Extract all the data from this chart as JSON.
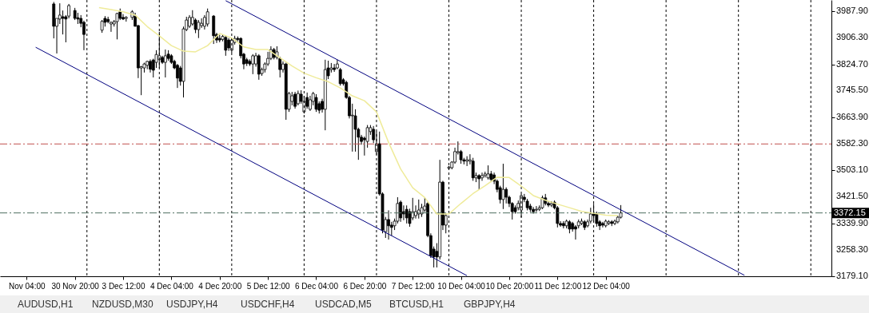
{
  "chart_data": {
    "type": "candlestick",
    "categories": [
      "Nov 04:00",
      null,
      null,
      null,
      null,
      null,
      null,
      null,
      null,
      null,
      null,
      null,
      null,
      null,
      null,
      null,
      "30 Nov 20:00",
      null,
      null,
      null,
      null,
      null,
      null,
      null,
      null,
      null,
      null,
      null,
      null,
      null,
      null,
      null,
      "3 Dec 12:00",
      null,
      null,
      null,
      null,
      null,
      null,
      null,
      null,
      null,
      null,
      null,
      null,
      null,
      null,
      null,
      "4 Dec 04:00",
      null,
      null,
      null,
      null,
      null,
      null,
      null,
      null,
      null,
      null,
      null,
      null,
      null,
      null,
      null,
      "4 Dec 20:00",
      null,
      null,
      null,
      null,
      null,
      null,
      null,
      null,
      null,
      null,
      null,
      null,
      null,
      null,
      null,
      "5 Dec 12:00",
      null,
      null,
      null,
      null,
      null,
      null,
      null,
      null,
      null,
      null,
      null,
      null,
      null,
      null,
      null,
      "6 Dec 04:00",
      null,
      null,
      null,
      null,
      null,
      null,
      null,
      null,
      null,
      null,
      null,
      null,
      null,
      null,
      null,
      "6 Dec 20:00",
      null,
      null,
      null,
      null,
      null,
      null,
      null,
      null,
      null,
      null,
      null,
      null,
      null,
      null,
      null,
      "7 Dec 12:00",
      null,
      null,
      null,
      null,
      null,
      null,
      null,
      null,
      null,
      null,
      null,
      null,
      null,
      null,
      null,
      "10 Dec 04:00",
      null,
      null,
      null,
      null,
      null,
      null,
      null,
      null,
      null,
      null,
      null,
      null,
      null,
      null,
      null,
      "10 Dec 20:00",
      null,
      null,
      null,
      null,
      null,
      null,
      null,
      null,
      null,
      null,
      null,
      null,
      null,
      null,
      null,
      "11 Dec 12:00",
      null,
      null,
      null,
      null,
      null,
      null,
      null,
      null,
      null,
      null,
      null,
      null,
      null,
      null,
      null,
      "12 Dec 04:00",
      null,
      null,
      null,
      null,
      null,
      null,
      null,
      null,
      null,
      null,
      null,
      null,
      null,
      null,
      null,
      null,
      null,
      null,
      null,
      null,
      null,
      null,
      null,
      null,
      null,
      null,
      null,
      null,
      null,
      null,
      null,
      null,
      null,
      null,
      null,
      null,
      null,
      null,
      null,
      null,
      null,
      null,
      null,
      null,
      null,
      null,
      null,
      null,
      null,
      null,
      null,
      null,
      null,
      null,
      null,
      null,
      null,
      null,
      null,
      null,
      null,
      null,
      null,
      null,
      null,
      null,
      null,
      null,
      null,
      null,
      null,
      null,
      null
    ],
    "ohlc": [
      null,
      null,
      null,
      null,
      null,
      null,
      null,
      null,
      null,
      [
        4009,
        4015,
        3904,
        3941
      ],
      [
        3941,
        3965,
        3858,
        3965
      ],
      [
        3963,
        4011,
        3948,
        3975
      ],
      [
        3970,
        3989,
        3916,
        3965
      ],
      [
        3970,
        3975,
        3892,
        3963
      ],
      [
        3972,
        4009,
        3965,
        4004
      ],
      null,
      [
        3989,
        3997,
        3960,
        3965
      ],
      [
        3967,
        3982,
        3948,
        3963
      ],
      [
        3965,
        3975,
        3938,
        3950
      ],
      [
        3953,
        3958,
        3868,
        3916
      ],
      null,
      null,
      null,
      null,
      null,
      [
        3929,
        3960,
        3921,
        3956
      ],
      [
        3965,
        3972,
        3940,
        3953
      ],
      [
        3962,
        3970,
        3950,
        3955
      ],
      [
        3948,
        3955,
        3924,
        3953
      ],
      [
        3948,
        3960,
        3940,
        3955
      ],
      [
        3955,
        3982,
        3901,
        3980
      ],
      [
        3985,
        3995,
        3960,
        3965
      ],
      [
        3968,
        3978,
        3960,
        3963
      ],
      [
        3965,
        3972,
        3955,
        3968
      ],
      null,
      [
        3968,
        3990,
        3960,
        3985
      ],
      [
        3972,
        3982,
        3940,
        3941
      ],
      [
        3943,
        3945,
        3783,
        3814
      ],
      [
        3814,
        3820,
        3731,
        3818
      ],
      [
        3814,
        3830,
        3800,
        3826
      ],
      [
        3822,
        3836,
        3810,
        3834
      ],
      [
        3834,
        3840,
        3800,
        3810
      ],
      [
        3838,
        3842,
        3785,
        3807
      ],
      [
        3831,
        3868,
        3814,
        3855
      ],
      [
        3839,
        3924,
        3814,
        3851
      ],
      [
        3846,
        3851,
        3826,
        3831
      ],
      [
        3831,
        3870,
        3785,
        3851
      ],
      [
        3856,
        3868,
        3836,
        3843
      ],
      [
        3851,
        3856,
        3826,
        3831
      ],
      [
        3834,
        3839,
        3810,
        3814
      ],
      [
        3822,
        3826,
        3753,
        3783
      ],
      [
        3814,
        3820,
        3760,
        3773
      ],
      [
        3773,
        3940,
        3724,
        3933
      ],
      [
        3931,
        3970,
        3926,
        3960
      ],
      [
        3941,
        3975,
        3936,
        3968
      ],
      [
        3948,
        3990,
        3943,
        3968
      ],
      [
        3960,
        3965,
        3920,
        3931
      ],
      [
        3931,
        3960,
        3905,
        3953
      ],
      [
        3943,
        3965,
        3936,
        3950
      ],
      [
        3941,
        3975,
        3931,
        3968
      ],
      [
        3948,
        3995,
        3940,
        3985
      ],
      null,
      [
        3972,
        3975,
        3887,
        3912
      ],
      [
        3916,
        3921,
        3890,
        3899
      ],
      [
        3904,
        3915,
        3892,
        3899
      ],
      [
        3901,
        3916,
        3895,
        3910
      ],
      [
        3907,
        3912,
        3851,
        3868
      ],
      [
        3899,
        3905,
        3866,
        3875
      ],
      [
        3868,
        3904,
        3860,
        3899
      ],
      [
        3892,
        3912,
        3885,
        3904
      ],
      [
        3904,
        3910,
        3895,
        3901
      ],
      [
        3904,
        3907,
        3843,
        3851
      ],
      [
        3856,
        3860,
        3810,
        3826
      ],
      [
        3839,
        3845,
        3820,
        3828
      ],
      [
        3834,
        3840,
        3820,
        3826
      ],
      [
        3826,
        3856,
        3795,
        3851
      ],
      [
        3826,
        3860,
        3818,
        3851
      ],
      [
        3851,
        3856,
        3778,
        3795
      ],
      [
        3797,
        3815,
        3790,
        3809
      ],
      [
        3809,
        3831,
        3800,
        3826
      ],
      [
        3826,
        3863,
        3820,
        3843
      ],
      [
        3843,
        3880,
        3838,
        3870
      ],
      [
        3870,
        3875,
        3840,
        3846
      ],
      [
        3846,
        3880,
        3840,
        3863
      ],
      [
        3843,
        3848,
        3785,
        3809
      ],
      [
        3809,
        3834,
        3800,
        3826
      ],
      [
        3826,
        3830,
        3656,
        3688
      ],
      [
        3688,
        3741,
        3680,
        3736
      ],
      [
        3712,
        3741,
        3700,
        3729
      ],
      [
        3734,
        3741,
        3690,
        3697
      ],
      [
        3705,
        3745,
        3700,
        3736
      ],
      [
        3734,
        3746,
        3705,
        3712
      ],
      [
        3680,
        3729,
        3675,
        3712
      ],
      [
        3724,
        3739,
        3690,
        3697
      ],
      [
        3688,
        3729,
        3683,
        3717
      ],
      [
        3712,
        3741,
        3700,
        3736
      ],
      [
        3724,
        3734,
        3680,
        3688
      ],
      [
        3705,
        3712,
        3675,
        3685
      ],
      [
        3712,
        3720,
        3678,
        3688
      ],
      [
        3688,
        3839,
        3624,
        3809
      ],
      [
        3814,
        3836,
        3780,
        3790
      ],
      [
        3809,
        3829,
        3800,
        3814
      ],
      [
        3814,
        3826,
        3802,
        3809
      ],
      [
        3814,
        3839,
        3810,
        3826
      ],
      [
        3809,
        3814,
        3760,
        3766
      ],
      [
        3778,
        3783,
        3760,
        3766
      ],
      [
        3770,
        3775,
        3720,
        3724
      ],
      [
        3724,
        3729,
        3660,
        3668
      ],
      [
        3668,
        3705,
        3559,
        3670
      ],
      [
        3668,
        3688,
        3559,
        3627
      ],
      [
        3627,
        3632,
        3534,
        3603
      ],
      [
        3603,
        3610,
        3580,
        3590
      ],
      [
        3600,
        3605,
        3547,
        3595
      ],
      [
        3590,
        3640,
        3571,
        3632
      ],
      [
        3620,
        3640,
        3610,
        3632
      ],
      [
        3627,
        3637,
        3585,
        3595
      ],
      [
        3559,
        3620,
        3550,
        3583
      ],
      [
        3583,
        3620,
        3425,
        3430
      ],
      [
        3430,
        3435,
        3310,
        3320
      ],
      [
        3315,
        3360,
        3296,
        3352
      ],
      [
        3352,
        3380,
        3291,
        3333
      ],
      [
        3335,
        3345,
        3303,
        3328
      ],
      [
        3333,
        3355,
        3320,
        3347
      ],
      [
        3347,
        3420,
        3340,
        3401
      ],
      [
        3405,
        3410,
        3345,
        3357
      ],
      [
        3376,
        3395,
        3350,
        3369
      ],
      [
        3383,
        3395,
        3340,
        3357
      ],
      [
        3376,
        3385,
        3330,
        3340
      ],
      [
        3357,
        3418,
        3350,
        3376
      ],
      [
        3364,
        3395,
        3355,
        3376
      ],
      [
        3369,
        3413,
        3355,
        3381
      ],
      [
        3369,
        3400,
        3360,
        3388
      ],
      [
        3381,
        3418,
        3375,
        3393
      ],
      [
        3401,
        3405,
        3298,
        3303
      ],
      [
        3303,
        3310,
        3235,
        3242
      ],
      [
        3262,
        3270,
        3206,
        3238
      ],
      [
        3255,
        3280,
        3206,
        3238
      ],
      [
        3238,
        3534,
        3230,
        3466
      ],
      [
        3466,
        3470,
        3320,
        3335
      ],
      [
        3335,
        3370,
        3310,
        3364
      ],
      [
        3508,
        3515,
        3505,
        3512
      ],
      [
        3510,
        3530,
        3505,
        3527
      ],
      [
        3527,
        3571,
        3522,
        3559
      ],
      [
        3556,
        3590,
        3550,
        3559
      ],
      [
        3559,
        3564,
        3522,
        3534
      ],
      [
        3534,
        3540,
        3520,
        3530
      ],
      [
        3530,
        3545,
        3515,
        3534
      ],
      [
        3530,
        3551,
        3520,
        3534
      ],
      [
        3530,
        3540,
        3470,
        3479
      ],
      [
        3479,
        3495,
        3466,
        3486
      ],
      [
        3486,
        3490,
        3442,
        3476
      ],
      [
        3479,
        3495,
        3470,
        3486
      ],
      [
        3486,
        3498,
        3480,
        3491
      ],
      [
        3479,
        3517,
        3474,
        3491
      ],
      [
        3491,
        3500,
        3466,
        3474
      ],
      [
        3488,
        3495,
        3460,
        3469
      ],
      [
        3469,
        3474,
        3435,
        3444
      ],
      [
        3449,
        3455,
        3401,
        3413
      ],
      [
        3413,
        3522,
        3384,
        3444
      ],
      [
        3444,
        3450,
        3401,
        3420
      ],
      [
        3420,
        3425,
        3390,
        3401
      ],
      [
        3401,
        3405,
        3352,
        3376
      ],
      [
        3388,
        3395,
        3370,
        3376
      ],
      [
        3388,
        3410,
        3380,
        3401
      ],
      [
        3381,
        3430,
        3359,
        3425
      ],
      [
        3420,
        3430,
        3405,
        3413
      ],
      [
        3408,
        3415,
        3380,
        3388
      ],
      [
        3393,
        3400,
        3375,
        3383
      ],
      [
        3383,
        3390,
        3370,
        3376
      ],
      [
        3381,
        3393,
        3375,
        3383
      ],
      [
        3383,
        3395,
        3378,
        3388
      ],
      [
        3388,
        3425,
        3384,
        3418
      ],
      [
        3418,
        3430,
        3395,
        3401
      ],
      [
        3401,
        3408,
        3390,
        3396
      ],
      [
        3396,
        3408,
        3390,
        3401
      ],
      [
        3405,
        3410,
        3383,
        3388
      ],
      [
        3388,
        3393,
        3328,
        3340
      ],
      [
        3340,
        3347,
        3330,
        3335
      ],
      [
        3340,
        3347,
        3325,
        3333
      ],
      [
        3333,
        3352,
        3325,
        3347
      ],
      [
        3345,
        3350,
        3310,
        3323
      ],
      [
        3340,
        3345,
        3315,
        3323
      ],
      [
        3330,
        3335,
        3291,
        3323
      ],
      [
        3333,
        3352,
        3325,
        3345
      ],
      [
        3340,
        3355,
        3335,
        3347
      ],
      [
        3345,
        3350,
        3320,
        3328
      ],
      [
        3333,
        3352,
        3328,
        3345
      ],
      [
        3347,
        3388,
        3340,
        3369
      ],
      [
        3369,
        3400,
        3345,
        3364
      ],
      [
        3369,
        3376,
        3330,
        3340
      ],
      [
        3345,
        3350,
        3320,
        3333
      ],
      [
        3340,
        3345,
        3328,
        3335
      ],
      [
        3333,
        3352,
        3328,
        3347
      ],
      [
        3340,
        3350,
        3335,
        3345
      ],
      [
        3345,
        3350,
        3332,
        3340
      ],
      [
        3340,
        3352,
        3335,
        3347
      ],
      [
        3345,
        3364,
        3340,
        3359
      ],
      [
        3359,
        3396,
        3355,
        3372.15
      ],
      null,
      null,
      null,
      null,
      null,
      null,
      null,
      null,
      null,
      null,
      null,
      null,
      null,
      null,
      null,
      null,
      null,
      null,
      null,
      null,
      null,
      null,
      null,
      null,
      null,
      null,
      null,
      null,
      null,
      null,
      null,
      null,
      null,
      null,
      null,
      null,
      null,
      null,
      null,
      null,
      null,
      null,
      null,
      null,
      null,
      null,
      null,
      null,
      null,
      null,
      null,
      null,
      null,
      null,
      null,
      null,
      null,
      null,
      null,
      null,
      null,
      null,
      null,
      null,
      null,
      null,
      null,
      null
    ],
    "series": [
      {
        "type": "line",
        "color": "#efeb9a",
        "values": [
          null,
          null,
          null,
          null,
          null,
          null,
          null,
          null,
          null,
          null,
          null,
          null,
          null,
          null,
          null,
          null,
          null,
          null,
          null,
          null,
          null,
          null,
          null,
          null,
          3998,
          null,
          null,
          null,
          3992,
          null,
          null,
          null,
          3985,
          null,
          null,
          null,
          3975,
          null,
          null,
          null,
          3940,
          null,
          null,
          null,
          3912,
          null,
          null,
          null,
          3882,
          null,
          null,
          null,
          3865,
          null,
          null,
          null,
          3863,
          null,
          null,
          null,
          3882,
          null,
          null,
          null,
          3919,
          null,
          null,
          null,
          3905,
          null,
          null,
          null,
          3878,
          null,
          null,
          null,
          3870,
          null,
          null,
          null,
          3870,
          null,
          null,
          null,
          3845,
          null,
          null,
          null,
          3820,
          null,
          null,
          null,
          3798,
          null,
          null,
          null,
          3784,
          null,
          null,
          null,
          3772,
          null,
          null,
          null,
          3753,
          null,
          null,
          null,
          3729,
          null,
          null,
          null,
          3714,
          null,
          null,
          null,
          3680,
          null,
          null,
          null,
          3587,
          null,
          null,
          null,
          3506,
          null,
          null,
          null,
          3449,
          null,
          null,
          null,
          3419,
          null,
          null,
          null,
          3369,
          null,
          null,
          null,
          3369,
          null,
          null,
          null,
          3401,
          null,
          null,
          null,
          3431,
          null,
          null,
          null,
          3455,
          null,
          null,
          null,
          3481,
          null,
          null,
          null,
          3480,
          null,
          null,
          null,
          3454,
          null,
          null,
          null,
          3425,
          null,
          null,
          null,
          3411,
          null,
          null,
          null,
          3399,
          null,
          null,
          null,
          3388,
          null,
          null,
          null,
          3377,
          null,
          null,
          null,
          3371,
          null,
          null,
          null,
          3365,
          null,
          null,
          null,
          3364,
          null,
          null,
          null,
          null,
          null,
          null,
          null,
          null,
          null,
          null,
          null,
          null,
          null,
          null,
          null,
          null,
          null,
          null,
          null,
          null,
          null,
          null,
          null,
          null,
          null,
          null,
          null,
          null,
          null,
          null,
          null,
          null,
          null,
          null,
          null,
          null,
          null,
          null,
          null,
          null,
          null,
          null,
          null,
          null,
          null,
          null,
          null,
          null,
          null,
          null,
          null,
          null,
          null,
          null,
          null,
          null,
          null,
          null,
          null,
          null,
          null,
          null,
          null,
          null,
          null,
          null,
          null,
          null,
          null
        ]
      },
      {
        "type": "line",
        "color": "#00007f",
        "values": [
          null,
          null,
          null,
          null,
          null,
          null,
          null,
          null,
          null,
          null,
          null,
          null,
          null,
          null,
          null,
          null,
          null,
          null,
          null,
          null,
          null,
          null,
          null,
          null,
          null,
          null,
          null,
          null,
          null,
          null,
          null,
          null,
          null,
          null,
          null,
          null,
          null,
          null,
          null,
          null,
          null,
          null,
          null,
          null,
          null,
          null,
          null,
          null,
          null,
          null,
          null,
          null,
          null,
          null,
          null,
          null,
          null,
          null,
          null,
          null,
          null,
          null,
          null,
          null,
          null,
          null,
          4019,
          null,
          null,
          null,
          null,
          null,
          null,
          null,
          null,
          null,
          null,
          null,
          null,
          null,
          null,
          null,
          null,
          null,
          null,
          null,
          null,
          null,
          null,
          null,
          null,
          null,
          null,
          null,
          null,
          null,
          null,
          null,
          null,
          null,
          null,
          null,
          null,
          null,
          null,
          null,
          null,
          null,
          null,
          null,
          null,
          null,
          null,
          null,
          null,
          null,
          null,
          null,
          null,
          null,
          null,
          null,
          null,
          null,
          null,
          null,
          null,
          null,
          null,
          null,
          null,
          null,
          null,
          null,
          null,
          null,
          null,
          null,
          null,
          null,
          null,
          null,
          null,
          null,
          null,
          null,
          null,
          null,
          null,
          null,
          null,
          null,
          null,
          null,
          null,
          null,
          null,
          null,
          null,
          null,
          null,
          null,
          null,
          null,
          null,
          null,
          null,
          null,
          null,
          null,
          null,
          null,
          null,
          null,
          null,
          null,
          null,
          null,
          null,
          null,
          null,
          null,
          null,
          null,
          null,
          null,
          null,
          null,
          null,
          null,
          null,
          null,
          null,
          null,
          null,
          null,
          null,
          null,
          null,
          null,
          null,
          null,
          null,
          null,
          null,
          null,
          null,
          null,
          null,
          null,
          null,
          null,
          null,
          null,
          null,
          null,
          null,
          null,
          null,
          null,
          null,
          null,
          null,
          null,
          null,
          null,
          null,
          null,
          null,
          null,
          null,
          null,
          null,
          null,
          null,
          null,
          null,
          null,
          3182,
          null,
          null,
          null,
          null,
          null,
          null,
          null,
          null,
          null,
          null,
          null,
          null,
          null,
          null,
          null,
          null,
          null,
          null,
          null,
          null,
          null,
          null,
          null,
          null,
          null,
          null,
          null
        ]
      },
      {
        "type": "line",
        "color": "#00007f",
        "values": [
          null,
          null,
          null,
          3877,
          null,
          null,
          null,
          null,
          null,
          null,
          null,
          null,
          null,
          null,
          null,
          null,
          null,
          null,
          null,
          null,
          null,
          null,
          null,
          null,
          null,
          null,
          null,
          null,
          null,
          null,
          null,
          null,
          null,
          null,
          null,
          null,
          null,
          null,
          null,
          null,
          null,
          null,
          null,
          null,
          null,
          null,
          null,
          null,
          null,
          null,
          null,
          null,
          null,
          null,
          null,
          null,
          null,
          null,
          null,
          null,
          null,
          null,
          null,
          null,
          null,
          null,
          null,
          null,
          null,
          null,
          null,
          null,
          null,
          null,
          null,
          null,
          null,
          null,
          null,
          null,
          null,
          null,
          null,
          null,
          null,
          null,
          null,
          null,
          null,
          null,
          null,
          null,
          null,
          null,
          null,
          null,
          null,
          null,
          null,
          null,
          null,
          null,
          null,
          null,
          null,
          null,
          null,
          null,
          null,
          null,
          null,
          null,
          null,
          null,
          null,
          null,
          null,
          null,
          null,
          null,
          null,
          null,
          null,
          null,
          null,
          null,
          null,
          null,
          null,
          null,
          null,
          null,
          null,
          null,
          null,
          null,
          null,
          null,
          null,
          null,
          null,
          null,
          null,
          null,
          null,
          null,
          3181,
          null,
          null,
          null,
          null,
          null,
          null,
          null,
          null,
          null,
          null,
          null,
          null,
          null,
          null,
          null,
          null,
          null,
          null,
          null,
          null,
          null,
          null,
          null,
          null,
          null,
          null,
          null,
          null,
          null,
          null,
          null,
          null,
          null,
          null,
          null,
          null,
          null,
          null,
          null,
          null,
          null,
          null,
          null,
          null,
          null,
          null,
          null,
          null,
          null,
          null,
          null,
          null,
          null,
          null,
          null,
          null,
          null,
          null,
          null,
          null,
          null,
          null,
          null,
          null,
          null,
          null,
          null,
          null,
          null,
          null,
          null,
          null,
          null,
          null,
          null,
          null,
          null,
          null,
          null,
          null,
          null,
          null,
          null,
          null,
          null,
          null,
          null,
          null,
          null,
          null,
          null,
          null,
          null,
          null,
          null,
          null,
          null,
          null,
          null,
          null,
          null,
          null,
          null,
          null,
          null,
          null,
          null,
          null,
          null,
          null,
          null,
          null,
          null,
          null,
          null,
          null,
          null,
          null,
          null
        ]
      }
    ],
    "ylim": [
      3179.1,
      4021
    ],
    "yticks": [
      {
        "value": 3987.9,
        "label": "3987.90"
      },
      {
        "value": 3906.3,
        "label": "3906.30"
      },
      {
        "value": 3824.7,
        "label": "3824.70"
      },
      {
        "value": 3745.5,
        "label": "3745.50"
      },
      {
        "value": 3663.9,
        "label": "3663.90"
      },
      {
        "value": 3582.3,
        "label": "3582.30"
      },
      {
        "value": 3503.1,
        "label": "3503.10"
      },
      {
        "value": 3421.5,
        "label": "3421.50"
      },
      {
        "value": 3339.9,
        "label": "3339.90"
      },
      {
        "value": 3258.3,
        "label": "3258.30"
      },
      {
        "value": 3179.1,
        "label": "3179.10"
      }
    ],
    "ref_lines": [
      {
        "axis": "y",
        "value": 3582.3,
        "color": "#c0504d",
        "line_style": "dashed"
      },
      {
        "axis": "y",
        "value": 3372.15,
        "label": "3372.15",
        "color": "#4f6f5f",
        "line_style": "dashed"
      }
    ],
    "grid": false,
    "annotations": [
      "AUDUSD,H1",
      "NZDUSD,M30",
      "USDJPY,H4",
      "USDCHF,H4",
      "USDCAD,M5",
      "BTCUSD,H1",
      "GBPJPY,H4"
    ]
  }
}
